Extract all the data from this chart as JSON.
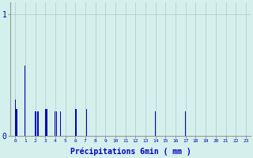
{
  "xlabel": "Précipitations 6min ( mm )",
  "background_color": "#d4f0ec",
  "bar_color": "#0000bb",
  "grid_color": "#b0c8c8",
  "tick_color": "#0000bb",
  "xlim": [
    -0.5,
    23.5
  ],
  "ylim": [
    0,
    1.1
  ],
  "yticks": [
    0,
    1
  ],
  "xticks": [
    0,
    1,
    2,
    3,
    4,
    5,
    6,
    7,
    8,
    9,
    10,
    11,
    12,
    13,
    14,
    15,
    16,
    17,
    18,
    19,
    20,
    21,
    22,
    23
  ],
  "bar_data": [
    [
      0.0,
      0.3
    ],
    [
      0.1,
      0.22
    ],
    [
      0.2,
      0.22
    ],
    [
      0.3,
      0.22
    ],
    [
      1.0,
      0.58
    ],
    [
      2.0,
      0.2
    ],
    [
      2.1,
      0.2
    ],
    [
      2.2,
      0.2
    ],
    [
      2.3,
      0.2
    ],
    [
      3.0,
      0.22
    ],
    [
      3.1,
      0.22
    ],
    [
      3.2,
      0.22
    ],
    [
      4.0,
      0.2
    ],
    [
      4.1,
      0.2
    ],
    [
      4.4,
      0.2
    ],
    [
      4.5,
      0.2
    ],
    [
      6.0,
      0.22
    ],
    [
      6.1,
      0.22
    ],
    [
      7.0,
      0.22
    ],
    [
      7.1,
      0.22
    ],
    [
      14.0,
      0.2
    ],
    [
      17.0,
      0.2
    ]
  ],
  "bar_width": 0.07
}
